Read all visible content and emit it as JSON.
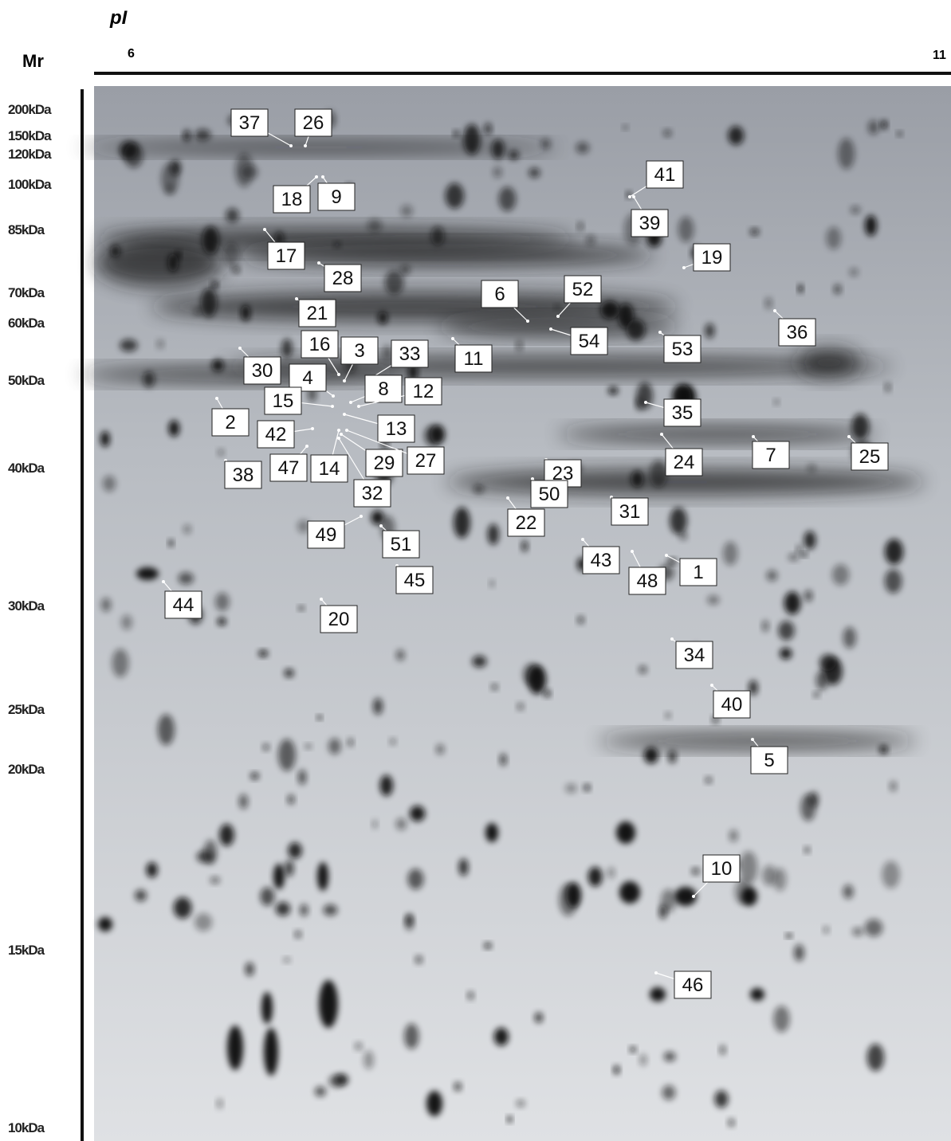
{
  "axes": {
    "x_label": "pI",
    "x_start": "6",
    "x_end": "11",
    "y_label": "Mr",
    "mw_markers": [
      "200kDa",
      "150kDa",
      "120kDa",
      "100kDa",
      "85kDa",
      "70kDa",
      "60kDa",
      "50kDa",
      "40kDa",
      "30kDa",
      "25kDa",
      "20kDa",
      "15kDa",
      "10kDa"
    ]
  },
  "spots": [
    "37",
    "26",
    "41",
    "18",
    "9",
    "39",
    "17",
    "19",
    "28",
    "6",
    "52",
    "21",
    "36",
    "54",
    "53",
    "16",
    "3",
    "33",
    "11",
    "30",
    "4",
    "8",
    "12",
    "15",
    "35",
    "2",
    "13",
    "42",
    "24",
    "7",
    "25",
    "47",
    "14",
    "29",
    "27",
    "23",
    "38",
    "32",
    "50",
    "31",
    "22",
    "49",
    "51",
    "43",
    "1",
    "48",
    "45",
    "44",
    "20",
    "34",
    "40",
    "5",
    "10",
    "46"
  ]
}
